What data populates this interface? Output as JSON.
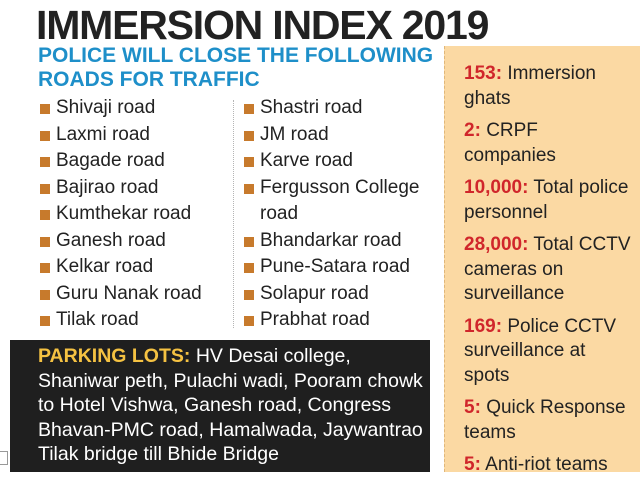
{
  "header": {
    "title": "IMMERSION INDEX 2019",
    "subtitle": "POLICE WILL CLOSE THE FOLLOWING ROADS FOR TRAFFIC"
  },
  "roads": {
    "left": [
      "Shivaji road",
      "Laxmi road",
      "Bagade road",
      "Bajirao road",
      "Kumthekar road",
      "Ganesh road",
      "Kelkar road",
      "Guru Nanak road",
      "Tilak road"
    ],
    "right": [
      "Shastri road",
      "JM road",
      "Karve road",
      "Fergusson College road",
      "Bhandarkar road",
      "Pune-Satara road",
      "Solapur road",
      "Prabhat road"
    ]
  },
  "parking": {
    "label": "PARKING LOTS:",
    "text": "HV Desai college, Shaniwar peth, Pulachi wadi, Pooram chowk to Hotel Vishwa, Ganesh road, Congress Bhavan-PMC road, Hamalwada, Jaywantrao Tilak bridge till Bhide Bridge"
  },
  "stats": [
    {
      "num": "153:",
      "text": "Immersion ghats"
    },
    {
      "num": "2:",
      "text": "CRPF companies"
    },
    {
      "num": "10,000:",
      "text": "Total police personnel"
    },
    {
      "num": "28,000:",
      "text": "Total CCTV cameras on surveillance"
    },
    {
      "num": "169:",
      "text": "Police CCTV surveillance at spots"
    },
    {
      "num": "5:",
      "text": "Quick Response teams"
    },
    {
      "num": "5:",
      "text": "Anti-riot teams"
    }
  ],
  "colors": {
    "title": "#222222",
    "subtitle": "#1e8fc9",
    "bullet": "#c77a2c",
    "parking_bg": "#1f1f1f",
    "parking_label": "#f5c242",
    "sidebar_bg": "#fbd9a3",
    "stat_number": "#d0262b"
  }
}
